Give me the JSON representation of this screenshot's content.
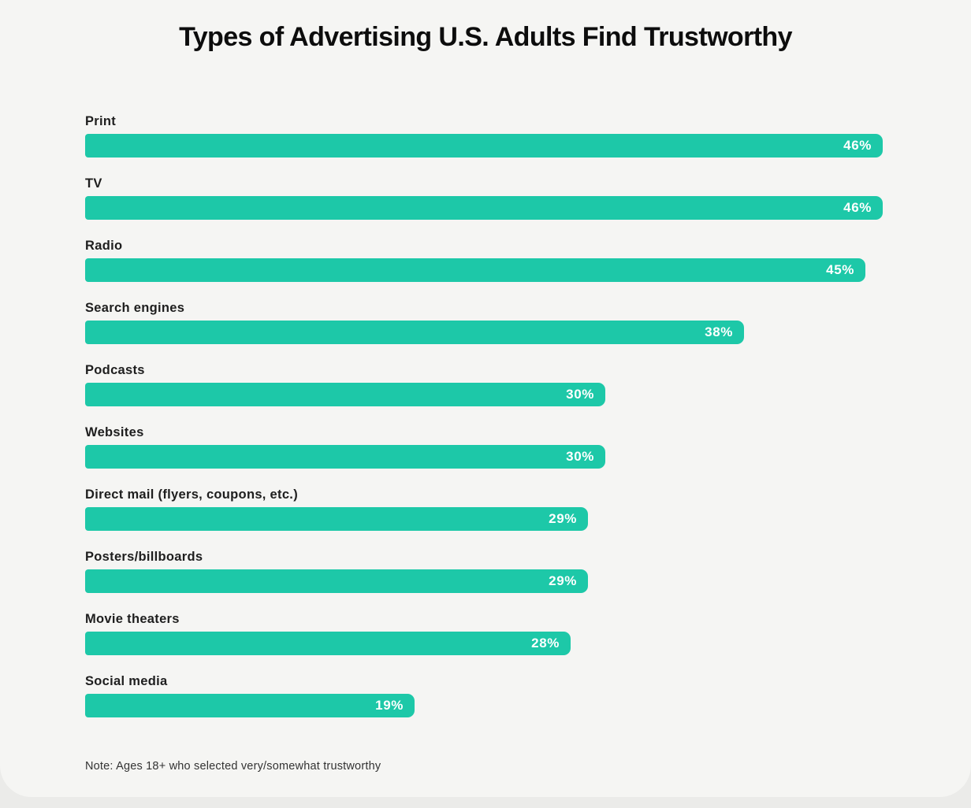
{
  "title": "Types of Advertising U.S. Adults Find Trustworthy",
  "note": "Note: Ages 18+ who selected very/somewhat trustworthy",
  "colors": {
    "bar": "#1dc8a8",
    "card_background": "#f5f5f3",
    "page_background": "#ebebe9",
    "title_text": "#0d0d0d",
    "label_text": "#1e1e1e",
    "value_text": "#ffffff",
    "note_text": "#333333"
  },
  "chart_data": {
    "type": "bar",
    "orientation": "horizontal",
    "title": "Types of Advertising U.S. Adults Find Trustworthy",
    "xlabel": "",
    "ylabel": "",
    "xlim": [
      0,
      46
    ],
    "grid": false,
    "legend": false,
    "categories": [
      "Print",
      "TV",
      "Radio",
      "Search engines",
      "Podcasts",
      "Websites",
      "Direct mail (flyers, coupons, etc.)",
      "Posters/billboards",
      "Movie theaters",
      "Social media"
    ],
    "values": [
      46,
      46,
      45,
      38,
      30,
      30,
      29,
      29,
      28,
      19
    ],
    "value_labels": [
      "46%",
      "46%",
      "45%",
      "38%",
      "30%",
      "30%",
      "29%",
      "29%",
      "28%",
      "19%"
    ],
    "annotation": "Note: Ages 18+ who selected very/somewhat trustworthy"
  }
}
